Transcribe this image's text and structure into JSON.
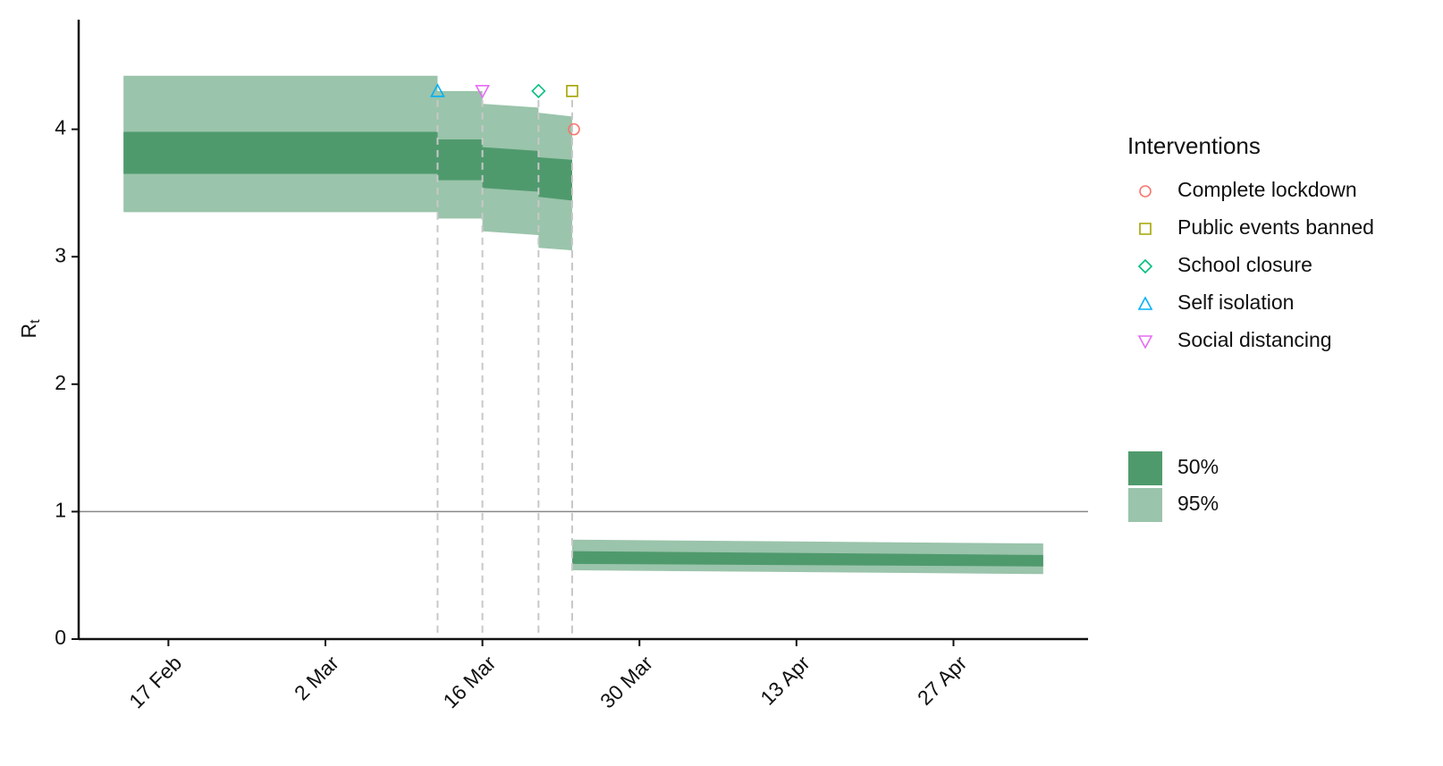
{
  "chart_data": {
    "type": "band",
    "y_label": "R",
    "y_label_sub": "t",
    "x": [
      "13 Feb",
      "12 Mar",
      "12 Mar",
      "16 Mar",
      "16 Mar",
      "21 Mar",
      "21 Mar",
      "24 Mar",
      "24 Mar",
      "24 Mar",
      "5 May"
    ],
    "series": [
      {
        "name": "95%",
        "color": "#9ac4ab",
        "lower": [
          3.35,
          3.35,
          3.3,
          3.3,
          3.2,
          3.17,
          3.07,
          3.05,
          null,
          0.54,
          0.51
        ],
        "upper": [
          4.42,
          4.42,
          4.3,
          4.3,
          4.2,
          4.17,
          4.13,
          4.1,
          null,
          0.78,
          0.75
        ]
      },
      {
        "name": "50%",
        "color": "#4f9a6d",
        "lower": [
          3.65,
          3.65,
          3.6,
          3.6,
          3.54,
          3.51,
          3.47,
          3.44,
          null,
          0.59,
          0.57
        ],
        "upper": [
          3.98,
          3.98,
          3.92,
          3.92,
          3.86,
          3.83,
          3.78,
          3.76,
          null,
          0.69,
          0.66
        ]
      }
    ],
    "interventions_title": "Interventions",
    "interventions": [
      {
        "name": "Complete lockdown",
        "color": "#F8766D",
        "shape": "circle",
        "x": "24 Mar",
        "y": 4.0
      },
      {
        "name": "Public events banned",
        "color": "#A3A500",
        "shape": "square",
        "x": "24 Mar",
        "y": 4.3
      },
      {
        "name": "School closure",
        "color": "#00BF7D",
        "shape": "diamond",
        "x": "21 Mar",
        "y": 4.3
      },
      {
        "name": "Self isolation",
        "color": "#00B0F6",
        "shape": "triangle",
        "x": "12 Mar",
        "y": 4.3
      },
      {
        "name": "Social distancing",
        "color": "#E76BF3",
        "shape": "triangle-down",
        "x": "16 Mar",
        "y": 4.3
      }
    ],
    "hline": 1,
    "xlim": [
      "9 Feb",
      "9 May"
    ],
    "xticks": [
      "17 Feb",
      "2 Mar",
      "16 Mar",
      "30 Mar",
      "13 Apr",
      "27 Apr"
    ],
    "ylim": [
      0,
      4.86
    ],
    "yticks": [
      0,
      1,
      2,
      3,
      4
    ]
  }
}
